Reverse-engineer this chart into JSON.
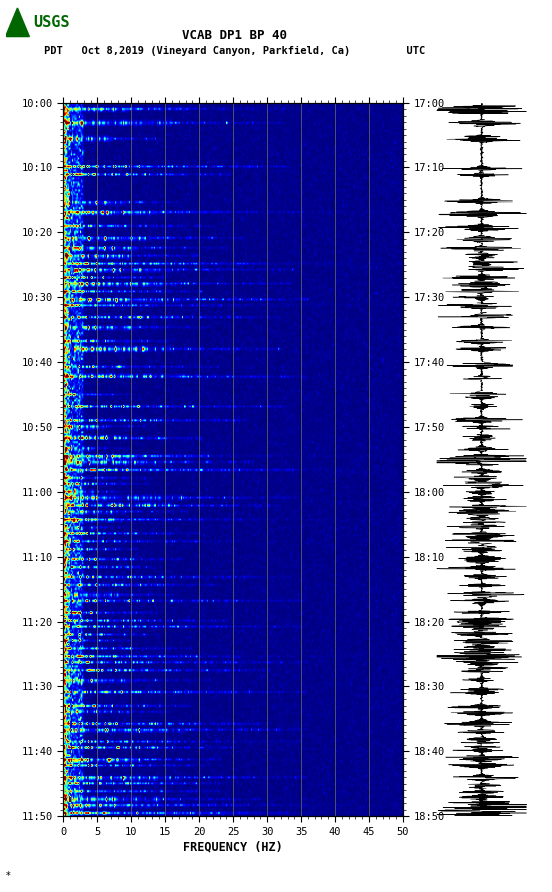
{
  "title_line1": "VCAB DP1 BP 40",
  "title_line2": "PDT   Oct 8,2019 (Vineyard Canyon, Parkfield, Ca)         UTC",
  "xlabel": "FREQUENCY (HZ)",
  "freq_min": 0,
  "freq_max": 50,
  "freq_ticks": [
    0,
    5,
    10,
    15,
    20,
    25,
    30,
    35,
    40,
    45,
    50
  ],
  "time_labels_left": [
    "10:00",
    "10:10",
    "10:20",
    "10:30",
    "10:40",
    "10:50",
    "11:00",
    "11:10",
    "11:20",
    "11:30",
    "11:40",
    "11:50"
  ],
  "time_labels_right": [
    "17:00",
    "17:10",
    "17:20",
    "17:30",
    "17:40",
    "17:50",
    "18:00",
    "18:10",
    "18:20",
    "18:30",
    "18:40",
    "18:50"
  ],
  "colormap": "jet",
  "bg_color": "#ffffff",
  "vertical_gridlines_freq": [
    5,
    10,
    15,
    20,
    25,
    30,
    35,
    40,
    45
  ],
  "grid_color": "#787850",
  "usgs_logo_color": "#006600"
}
